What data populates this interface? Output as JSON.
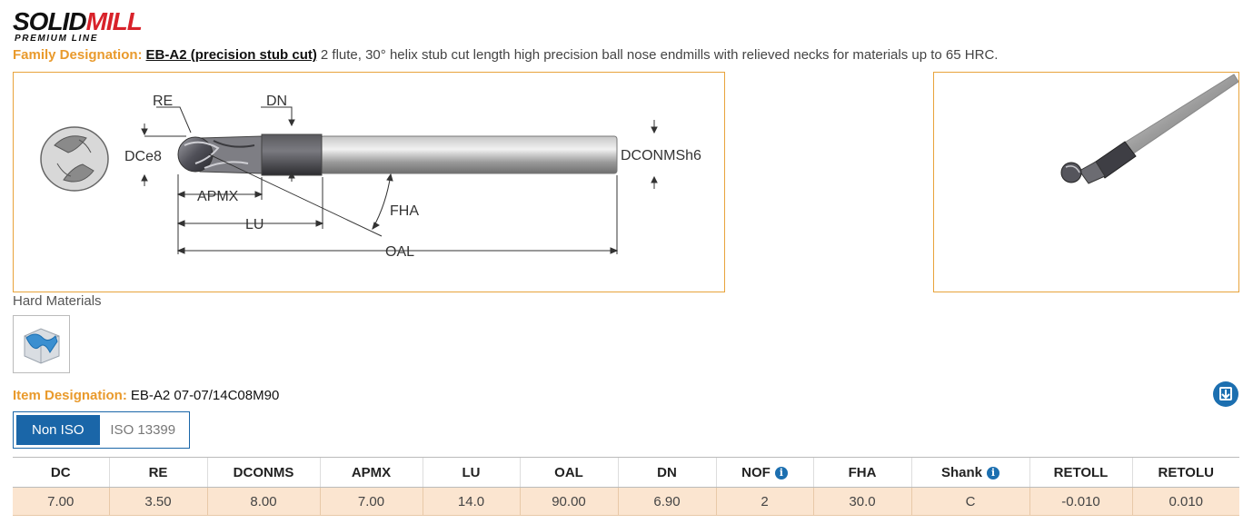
{
  "brand": {
    "logo_part1": "SOLID",
    "logo_part2": "MILL",
    "tagline": "PREMIUM LINE"
  },
  "family": {
    "label": "Family Designation:",
    "link": "EB-A2 (precision stub cut)",
    "description": "2 flute, 30° helix stub cut length high precision ball nose endmills with relieved necks for materials up to 65 HRC."
  },
  "diagram": {
    "labels": {
      "re": "RE",
      "dn": "DN",
      "dc": "DCe8",
      "dconms": "DCONMSh6",
      "apmx": "APMX",
      "lu": "LU",
      "fha": "FHA",
      "oal": "OAL"
    }
  },
  "materials": {
    "label": "Hard Materials",
    "icon": "hard-material-icon"
  },
  "item": {
    "label": "Item Designation:",
    "value": "EB-A2 07-07/14C08M90"
  },
  "iso_toggle": {
    "active": "Non ISO",
    "inactive": "ISO 13399"
  },
  "table": {
    "headers": [
      "DC",
      "RE",
      "DCONMS",
      "APMX",
      "LU",
      "OAL",
      "DN",
      "NOF",
      "FHA",
      "Shank",
      "RETOLL",
      "RETOLU"
    ],
    "row": [
      "7.00",
      "3.50",
      "8.00",
      "7.00",
      "14.0",
      "90.00",
      "6.90",
      "2",
      "30.0",
      "C",
      "-0.010",
      "0.010"
    ]
  },
  "colors": {
    "accent_orange": "#e99a2c",
    "brand_red": "#d8222a",
    "primary_blue": "#1a66a8",
    "row_highlight": "#fbe5d0"
  }
}
